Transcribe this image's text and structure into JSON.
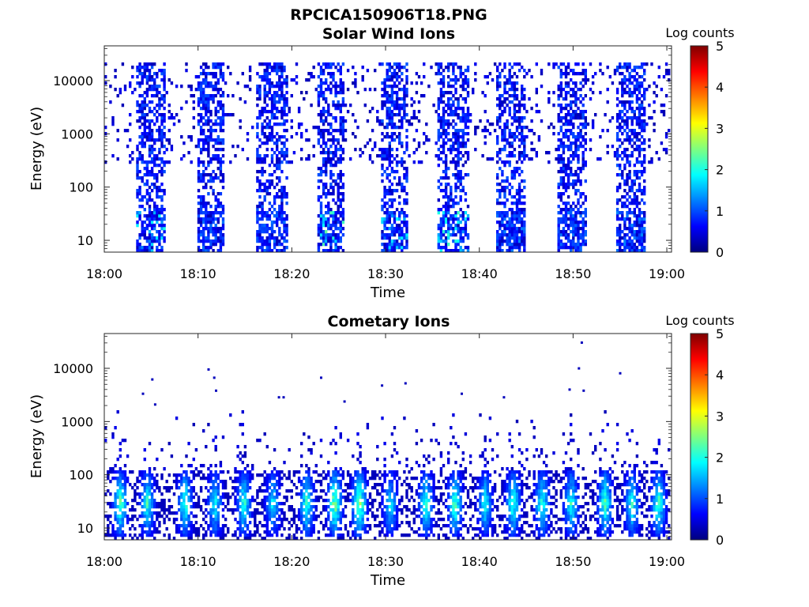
{
  "figure": {
    "title": "RPCICA150906T18.PNG"
  },
  "colormap": {
    "name": "jet",
    "stops": [
      "#00007f",
      "#0000ff",
      "#007fff",
      "#00ffff",
      "#7fff7f",
      "#ffff00",
      "#ff7f00",
      "#ff0000",
      "#7f0000"
    ]
  },
  "chart_data": [
    {
      "type": "heatmap",
      "title": "Solar Wind Ions",
      "xlabel": "Time",
      "ylabel": "Energy (eV)",
      "x_tick_labels": [
        "18:00",
        "18:10",
        "18:20",
        "18:30",
        "18:40",
        "18:50",
        "19:00"
      ],
      "x_tick_values_min": [
        0,
        10,
        20,
        30,
        40,
        50,
        60
      ],
      "xlim_min": [
        0,
        60.5
      ],
      "y_scale": "log",
      "y_tick_labels": [
        "10",
        "100",
        "1000",
        "10000"
      ],
      "y_tick_values": [
        10,
        100,
        1000,
        10000
      ],
      "ylim": [
        6,
        45000
      ],
      "colorbar": {
        "label": "Log counts",
        "range": [
          0,
          5
        ],
        "tick_labels": [
          "0",
          "1",
          "2",
          "3",
          "4",
          "5"
        ]
      },
      "pattern": "bursts",
      "bursts_min": [
        {
          "start": 3.4,
          "end": 6.6,
          "peak_log": 2.0
        },
        {
          "start": 9.8,
          "end": 12.9,
          "peak_log": 1.2
        },
        {
          "start": 16.3,
          "end": 19.5,
          "peak_log": 1.2
        },
        {
          "start": 22.6,
          "end": 25.7,
          "peak_log": 2.4
        },
        {
          "start": 29.4,
          "end": 32.5,
          "peak_log": 1.9
        },
        {
          "start": 35.6,
          "end": 38.8,
          "peak_log": 2.2
        },
        {
          "start": 41.9,
          "end": 45.0,
          "peak_log": 1.3
        },
        {
          "start": 48.2,
          "end": 51.4,
          "peak_log": 1.2
        },
        {
          "start": 54.6,
          "end": 57.8,
          "peak_log": 1.3
        }
      ],
      "background_energy_range_eV": [
        300,
        20000
      ],
      "burst_energy_range_eV": [
        6,
        20000
      ]
    },
    {
      "type": "heatmap",
      "title": "Cometary Ions",
      "xlabel": "Time",
      "ylabel": "Energy (eV)",
      "x_tick_labels": [
        "18:00",
        "18:10",
        "18:20",
        "18:30",
        "18:40",
        "18:50",
        "19:00"
      ],
      "x_tick_values_min": [
        0,
        10,
        20,
        30,
        40,
        50,
        60
      ],
      "xlim_min": [
        0,
        60.5
      ],
      "y_scale": "log",
      "y_tick_labels": [
        "10",
        "100",
        "1000",
        "10000"
      ],
      "y_tick_values": [
        10,
        100,
        1000,
        10000
      ],
      "ylim": [
        6,
        45000
      ],
      "colorbar": {
        "label": "Log counts",
        "range": [
          0,
          5
        ],
        "tick_labels": [
          "0",
          "1",
          "2",
          "3",
          "4",
          "5"
        ]
      },
      "pattern": "continuous",
      "peak_energy_eV": 30,
      "core_energy_range_eV": [
        10,
        120
      ],
      "sparse_energy_range_eV": [
        120,
        1500
      ],
      "peaks_min": [
        {
          "t": 1.7,
          "log": 2.7
        },
        {
          "t": 4.6,
          "log": 2.4
        },
        {
          "t": 8.6,
          "log": 2.5
        },
        {
          "t": 11.8,
          "log": 2.2
        },
        {
          "t": 14.9,
          "log": 2.4
        },
        {
          "t": 18.0,
          "log": 2.1
        },
        {
          "t": 21.6,
          "log": 2.5
        },
        {
          "t": 24.6,
          "log": 3.0
        },
        {
          "t": 27.2,
          "log": 3.1
        },
        {
          "t": 30.5,
          "log": 2.1
        },
        {
          "t": 34.3,
          "log": 2.5
        },
        {
          "t": 37.4,
          "log": 2.6
        },
        {
          "t": 40.6,
          "log": 2.2
        },
        {
          "t": 43.6,
          "log": 2.5
        },
        {
          "t": 46.7,
          "log": 2.5
        },
        {
          "t": 49.8,
          "log": 2.4
        },
        {
          "t": 53.4,
          "log": 2.6
        },
        {
          "t": 56.3,
          "log": 2.4
        },
        {
          "t": 59.1,
          "log": 2.6
        }
      ],
      "outlier_points": [
        {
          "t": 11.0,
          "e": 10000
        },
        {
          "t": 11.6,
          "e": 7000
        },
        {
          "t": 11.8,
          "e": 4000
        },
        {
          "t": 4.0,
          "e": 3500
        },
        {
          "t": 5.0,
          "e": 6500
        },
        {
          "t": 5.3,
          "e": 2200
        },
        {
          "t": 23.0,
          "e": 7000
        },
        {
          "t": 25.5,
          "e": 2500
        },
        {
          "t": 29.5,
          "e": 5000
        },
        {
          "t": 32.0,
          "e": 5500
        },
        {
          "t": 38.0,
          "e": 3500
        },
        {
          "t": 42.5,
          "e": 3000
        },
        {
          "t": 49.5,
          "e": 4200
        },
        {
          "t": 50.5,
          "e": 10500
        },
        {
          "t": 51.0,
          "e": 4000
        },
        {
          "t": 50.8,
          "e": 32000
        },
        {
          "t": 54.9,
          "e": 8500
        },
        {
          "t": 19.0,
          "e": 3000
        },
        {
          "t": 18.5,
          "e": 3000
        }
      ]
    }
  ]
}
